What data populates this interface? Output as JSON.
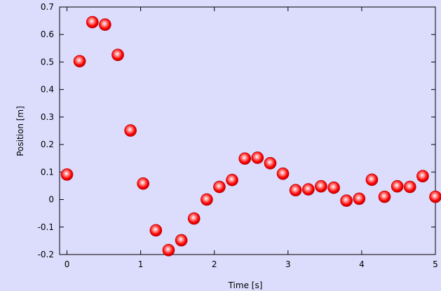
{
  "chart_data": {
    "type": "scatter",
    "title": "",
    "xlabel": "Time [s]",
    "ylabel": "Position [m]",
    "xlim": [
      -0.1,
      5.0
    ],
    "ylim": [
      -0.2,
      0.7
    ],
    "grid": false,
    "legend": "none",
    "xticks": [
      0,
      1,
      2,
      3,
      4,
      5
    ],
    "xtick_labels": [
      "0",
      "1",
      "2",
      "3",
      "4",
      "5"
    ],
    "yticks": [
      -0.2,
      -0.1,
      0,
      0.1,
      0.2,
      0.3,
      0.4,
      0.5,
      0.6,
      0.7
    ],
    "ytick_labels": [
      "-0.2",
      "-0.1",
      "0",
      "0.1",
      "0.2",
      "0.3",
      "0.4",
      "0.5",
      "0.6",
      "0.7"
    ],
    "colors": {
      "background": "#dcdcfc",
      "marker": "#ff0000",
      "marker_highlight": "#ffffff"
    },
    "series": [
      {
        "x": [
          0.0,
          0.172,
          0.345,
          0.517,
          0.69,
          0.862,
          1.034,
          1.207,
          1.379,
          1.552,
          1.724,
          1.897,
          2.069,
          2.241,
          2.414,
          2.586,
          2.759,
          2.931,
          3.103,
          3.276,
          3.448,
          3.621,
          3.793,
          3.966,
          4.138,
          4.31,
          4.483,
          4.655,
          4.828,
          5.0
        ],
        "y": [
          0.091,
          0.503,
          0.645,
          0.636,
          0.526,
          0.251,
          0.058,
          -0.112,
          -0.184,
          -0.148,
          -0.069,
          0.0,
          0.046,
          0.071,
          0.149,
          0.152,
          0.132,
          0.094,
          0.034,
          0.037,
          0.048,
          0.043,
          -0.004,
          0.003,
          0.072,
          0.01,
          0.048,
          0.046,
          0.085,
          0.01
        ]
      }
    ]
  }
}
